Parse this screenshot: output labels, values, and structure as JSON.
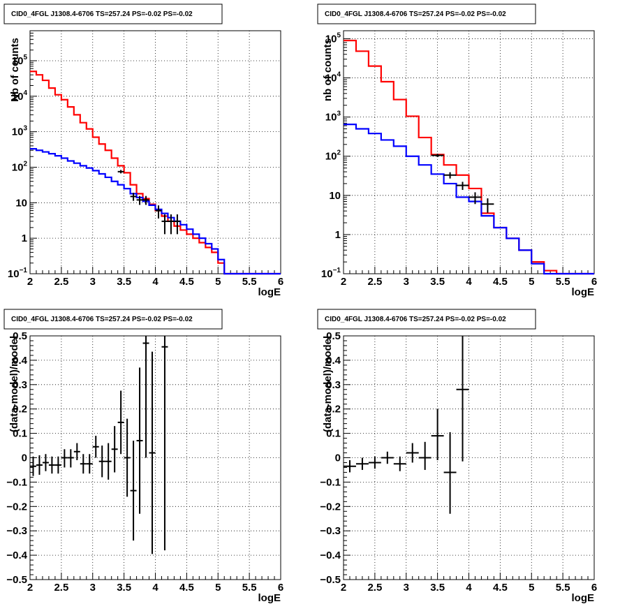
{
  "chart_data": [
    {
      "type": "line",
      "panel": "top-left",
      "title": "CID0_4FGL J1308.4-6706 TS=257.24 PS=-0.02 PS=-0.02",
      "xlabel": "logE",
      "ylabel": "Nb of counts",
      "xlim": [
        2,
        6
      ],
      "ylim": [
        0.1,
        700000
      ],
      "yscale": "log",
      "grid": true,
      "x_ticks": [
        "2",
        "2.5",
        "3",
        "3.5",
        "4",
        "4.5",
        "5",
        "5.5",
        "6"
      ],
      "y_ticks": [
        {
          "v": 0.1,
          "m": "10",
          "e": "−1"
        },
        {
          "v": 1,
          "m": "1",
          "e": ""
        },
        {
          "v": 10,
          "m": "10",
          "e": ""
        },
        {
          "v": 100,
          "m": "10",
          "e": "2"
        },
        {
          "v": 1000,
          "m": "10",
          "e": "3"
        },
        {
          "v": 10000,
          "m": "10",
          "e": "4"
        },
        {
          "v": 100000,
          "m": "10",
          "e": "5"
        }
      ],
      "bin_edges": [
        2,
        2.1,
        2.2,
        2.3,
        2.4,
        2.5,
        2.6,
        2.7,
        2.8,
        2.9,
        3,
        3.1,
        3.2,
        3.3,
        3.4,
        3.5,
        3.6,
        3.7,
        3.8,
        3.9,
        4,
        4.1,
        4.2,
        4.3,
        4.4,
        4.5,
        4.6,
        4.7,
        4.8,
        4.9,
        5,
        5.1,
        5.2,
        5.3,
        5.4,
        5.5,
        5.6,
        5.7,
        5.8,
        5.9,
        6
      ],
      "series": [
        {
          "color": "#ff0000",
          "values": [
            50000,
            40000,
            28000,
            17000,
            11000,
            8000,
            5000,
            3000,
            1800,
            1200,
            700,
            450,
            300,
            180,
            110,
            70,
            32,
            18,
            13,
            9,
            6,
            4.2,
            3,
            2.2,
            1.7,
            1.3,
            1.0,
            0.75,
            0.55,
            0.4,
            0.2,
            0.1,
            0.1,
            0.1,
            0.1,
            0.1,
            0.1,
            0.1,
            0.1,
            0.1
          ]
        },
        {
          "color": "#0000ff",
          "values": [
            330,
            300,
            270,
            240,
            210,
            180,
            150,
            130,
            110,
            95,
            80,
            65,
            52,
            40,
            32,
            25,
            18,
            14,
            11,
            8.5,
            6.5,
            5,
            3.8,
            3,
            2.4,
            1.8,
            1.3,
            1.0,
            0.7,
            0.5,
            0.25,
            0.1,
            0.1,
            0.1,
            0.1,
            0.1,
            0.1,
            0.1,
            0.1,
            0.1
          ]
        }
      ],
      "points": [
        {
          "x": 3.45,
          "xerr": 0.05,
          "y": 75,
          "ylo": 67,
          "yhi": 84
        },
        {
          "x": 3.65,
          "xerr": 0.05,
          "y": 15,
          "ylo": 11.3,
          "yhi": 19
        },
        {
          "x": 3.75,
          "xerr": 0.05,
          "y": 12,
          "ylo": 8.7,
          "yhi": 15.5
        },
        {
          "x": 3.85,
          "xerr": 0.05,
          "y": 12,
          "ylo": 8.7,
          "yhi": 15.5
        },
        {
          "x": 4.05,
          "xerr": 0.05,
          "y": 6,
          "ylo": 3.6,
          "yhi": 8.4
        },
        {
          "x": 4.15,
          "xerr": 0.05,
          "y": 3,
          "ylo": 1.3,
          "yhi": 4.7
        },
        {
          "x": 4.25,
          "xerr": 0.05,
          "y": 3,
          "ylo": 1.3,
          "yhi": 4.7
        },
        {
          "x": 4.35,
          "xerr": 0.05,
          "y": 3,
          "ylo": 1.3,
          "yhi": 4.7
        }
      ]
    },
    {
      "type": "line",
      "panel": "top-right",
      "title": "CID0_4FGL J1308.4-6706 TS=257.24 PS=-0.02 PS=-0.02",
      "xlabel": "logE",
      "ylabel": "nb of counts",
      "xlim": [
        2,
        6
      ],
      "ylim": [
        0.1,
        160000
      ],
      "yscale": "log",
      "grid": true,
      "x_ticks": [
        "2",
        "2.5",
        "3",
        "3.5",
        "4",
        "4.5",
        "5",
        "5.5",
        "6"
      ],
      "y_ticks": [
        {
          "v": 0.1,
          "m": "10",
          "e": "−1"
        },
        {
          "v": 1,
          "m": "1",
          "e": ""
        },
        {
          "v": 10,
          "m": "10",
          "e": ""
        },
        {
          "v": 100,
          "m": "10",
          "e": "2"
        },
        {
          "v": 1000,
          "m": "10",
          "e": "3"
        },
        {
          "v": 10000,
          "m": "10",
          "e": "4"
        },
        {
          "v": 100000,
          "m": "10",
          "e": "5"
        }
      ],
      "bin_edges": [
        2,
        2.2,
        2.4,
        2.6,
        2.8,
        3,
        3.2,
        3.4,
        3.6,
        3.8,
        4,
        4.2,
        4.4,
        4.6,
        4.8,
        5,
        5.2,
        5.4,
        5.6,
        5.8,
        6
      ],
      "series": [
        {
          "color": "#ff0000",
          "values": [
            90000,
            48000,
            20000,
            8000,
            2800,
            1050,
            300,
            110,
            60,
            33,
            15,
            3.5,
            1.5,
            0.8,
            0.4,
            0.2,
            0.12,
            0.1,
            0.1,
            0.1
          ]
        },
        {
          "color": "#0000ff",
          "values": [
            650,
            500,
            380,
            260,
            180,
            100,
            60,
            35,
            20,
            9,
            7,
            3,
            1.5,
            0.8,
            0.4,
            0.18,
            0.1,
            0.1,
            0.1,
            0.1
          ]
        }
      ],
      "points": [
        {
          "x": 3.5,
          "xerr": 0.1,
          "y": 105,
          "ylo": 95,
          "yhi": 115
        },
        {
          "x": 3.7,
          "xerr": 0.1,
          "y": 33,
          "ylo": 27,
          "yhi": 39
        },
        {
          "x": 3.9,
          "xerr": 0.1,
          "y": 18,
          "ylo": 13.8,
          "yhi": 22.2
        },
        {
          "x": 4.1,
          "xerr": 0.1,
          "y": 9,
          "ylo": 6,
          "yhi": 12
        },
        {
          "x": 4.3,
          "xerr": 0.1,
          "y": 6,
          "ylo": 3.6,
          "yhi": 8.4
        }
      ]
    },
    {
      "type": "scatter",
      "panel": "bottom-left",
      "title": "CID0_4FGL J1308.4-6706 TS=257.24 PS=-0.02 PS=-0.02",
      "xlabel": "logE",
      "ylabel": "(data-model)/model",
      "xlim": [
        2,
        6
      ],
      "ylim": [
        -0.5,
        0.5
      ],
      "yscale": "linear",
      "grid": true,
      "x_ticks": [
        "2",
        "2.5",
        "3",
        "3.5",
        "4",
        "4.5",
        "5",
        "5.5",
        "6"
      ],
      "y_ticks": [
        {
          "v": -0.5,
          "m": "−0.5",
          "e": ""
        },
        {
          "v": -0.4,
          "m": "−0.4",
          "e": ""
        },
        {
          "v": -0.3,
          "m": "−0.3",
          "e": ""
        },
        {
          "v": -0.2,
          "m": "−0.2",
          "e": ""
        },
        {
          "v": -0.1,
          "m": "−0.1",
          "e": ""
        },
        {
          "v": 0,
          "m": "0",
          "e": ""
        },
        {
          "v": 0.1,
          "m": "0.1",
          "e": ""
        },
        {
          "v": 0.2,
          "m": "0.2",
          "e": ""
        },
        {
          "v": 0.3,
          "m": "0.3",
          "e": ""
        },
        {
          "v": 0.4,
          "m": "0.4",
          "e": ""
        },
        {
          "v": 0.5,
          "m": "0.5",
          "e": ""
        }
      ],
      "series": [],
      "points": [
        {
          "x": 2.05,
          "xerr": 0.05,
          "y": -0.035,
          "ylo": -0.075,
          "yhi": 0.005
        },
        {
          "x": 2.15,
          "xerr": 0.05,
          "y": -0.03,
          "ylo": -0.07,
          "yhi": 0.01
        },
        {
          "x": 2.25,
          "xerr": 0.05,
          "y": -0.02,
          "ylo": -0.055,
          "yhi": 0.015
        },
        {
          "x": 2.35,
          "xerr": 0.05,
          "y": -0.03,
          "ylo": -0.065,
          "yhi": 0.005
        },
        {
          "x": 2.45,
          "xerr": 0.05,
          "y": -0.03,
          "ylo": -0.065,
          "yhi": 0.005
        },
        {
          "x": 2.55,
          "xerr": 0.05,
          "y": 0.0,
          "ylo": -0.04,
          "yhi": 0.035
        },
        {
          "x": 2.65,
          "xerr": 0.05,
          "y": 0.0,
          "ylo": -0.04,
          "yhi": 0.035
        },
        {
          "x": 2.75,
          "xerr": 0.05,
          "y": 0.025,
          "ylo": -0.01,
          "yhi": 0.06
        },
        {
          "x": 2.85,
          "xerr": 0.05,
          "y": -0.025,
          "ylo": -0.065,
          "yhi": 0.015
        },
        {
          "x": 2.95,
          "xerr": 0.05,
          "y": -0.025,
          "ylo": -0.065,
          "yhi": 0.015
        },
        {
          "x": 3.05,
          "xerr": 0.05,
          "y": 0.045,
          "ylo": 0.0,
          "yhi": 0.09
        },
        {
          "x": 3.15,
          "xerr": 0.05,
          "y": -0.015,
          "ylo": -0.08,
          "yhi": 0.05
        },
        {
          "x": 3.25,
          "xerr": 0.05,
          "y": -0.015,
          "ylo": -0.09,
          "yhi": 0.06
        },
        {
          "x": 3.35,
          "xerr": 0.05,
          "y": 0.035,
          "ylo": -0.06,
          "yhi": 0.13
        },
        {
          "x": 3.45,
          "xerr": 0.05,
          "y": 0.145,
          "ylo": 0.015,
          "yhi": 0.275
        },
        {
          "x": 3.55,
          "xerr": 0.05,
          "y": 0.0,
          "ylo": -0.16,
          "yhi": 0.16
        },
        {
          "x": 3.65,
          "xerr": 0.05,
          "y": -0.135,
          "ylo": -0.34,
          "yhi": 0.07
        },
        {
          "x": 3.75,
          "xerr": 0.05,
          "y": 0.07,
          "ylo": -0.23,
          "yhi": 0.37
        },
        {
          "x": 3.85,
          "xerr": 0.05,
          "y": 0.47,
          "ylo": 0.0,
          "yhi": 0.5
        },
        {
          "x": 3.95,
          "xerr": 0.05,
          "y": 0.02,
          "ylo": -0.395,
          "yhi": 0.435
        },
        {
          "x": 4.15,
          "xerr": 0.05,
          "y": 0.455,
          "ylo": -0.38,
          "yhi": 0.5
        }
      ]
    },
    {
      "type": "scatter",
      "panel": "bottom-right",
      "title": "CID0_4FGL J1308.4-6706 TS=257.24 PS=-0.02 PS=-0.02",
      "xlabel": "logE",
      "ylabel": "(data-model)/model",
      "xlim": [
        2,
        6
      ],
      "ylim": [
        -0.5,
        0.5
      ],
      "yscale": "linear",
      "grid": true,
      "x_ticks": [
        "2",
        "2.5",
        "3",
        "3.5",
        "4",
        "4.5",
        "5",
        "5.5",
        "6"
      ],
      "y_ticks": [
        {
          "v": -0.5,
          "m": "−0.5",
          "e": ""
        },
        {
          "v": -0.4,
          "m": "−0.4",
          "e": ""
        },
        {
          "v": -0.3,
          "m": "−0.3",
          "e": ""
        },
        {
          "v": -0.2,
          "m": "−0.2",
          "e": ""
        },
        {
          "v": -0.1,
          "m": "−0.1",
          "e": ""
        },
        {
          "v": 0,
          "m": "0",
          "e": ""
        },
        {
          "v": 0.1,
          "m": "0.1",
          "e": ""
        },
        {
          "v": 0.2,
          "m": "0.2",
          "e": ""
        },
        {
          "v": 0.3,
          "m": "0.3",
          "e": ""
        },
        {
          "v": 0.4,
          "m": "0.4",
          "e": ""
        },
        {
          "v": 0.5,
          "m": "0.5",
          "e": ""
        }
      ],
      "series": [],
      "points": [
        {
          "x": 2.1,
          "xerr": 0.1,
          "y": -0.035,
          "ylo": -0.06,
          "yhi": -0.01
        },
        {
          "x": 2.3,
          "xerr": 0.1,
          "y": -0.025,
          "ylo": -0.05,
          "yhi": 0.0
        },
        {
          "x": 2.5,
          "xerr": 0.1,
          "y": -0.02,
          "ylo": -0.045,
          "yhi": 0.005
        },
        {
          "x": 2.7,
          "xerr": 0.1,
          "y": 0.0,
          "ylo": -0.025,
          "yhi": 0.025
        },
        {
          "x": 2.9,
          "xerr": 0.1,
          "y": -0.025,
          "ylo": -0.055,
          "yhi": 0.005
        },
        {
          "x": 3.1,
          "xerr": 0.1,
          "y": 0.02,
          "ylo": -0.02,
          "yhi": 0.06
        },
        {
          "x": 3.3,
          "xerr": 0.1,
          "y": 0.0,
          "ylo": -0.05,
          "yhi": 0.065
        },
        {
          "x": 3.5,
          "xerr": 0.1,
          "y": 0.09,
          "ylo": -0.01,
          "yhi": 0.2
        },
        {
          "x": 3.7,
          "xerr": 0.1,
          "y": -0.06,
          "ylo": -0.23,
          "yhi": 0.105
        },
        {
          "x": 3.9,
          "xerr": 0.1,
          "y": 0.28,
          "ylo": -0.015,
          "yhi": 0.5
        }
      ]
    }
  ]
}
